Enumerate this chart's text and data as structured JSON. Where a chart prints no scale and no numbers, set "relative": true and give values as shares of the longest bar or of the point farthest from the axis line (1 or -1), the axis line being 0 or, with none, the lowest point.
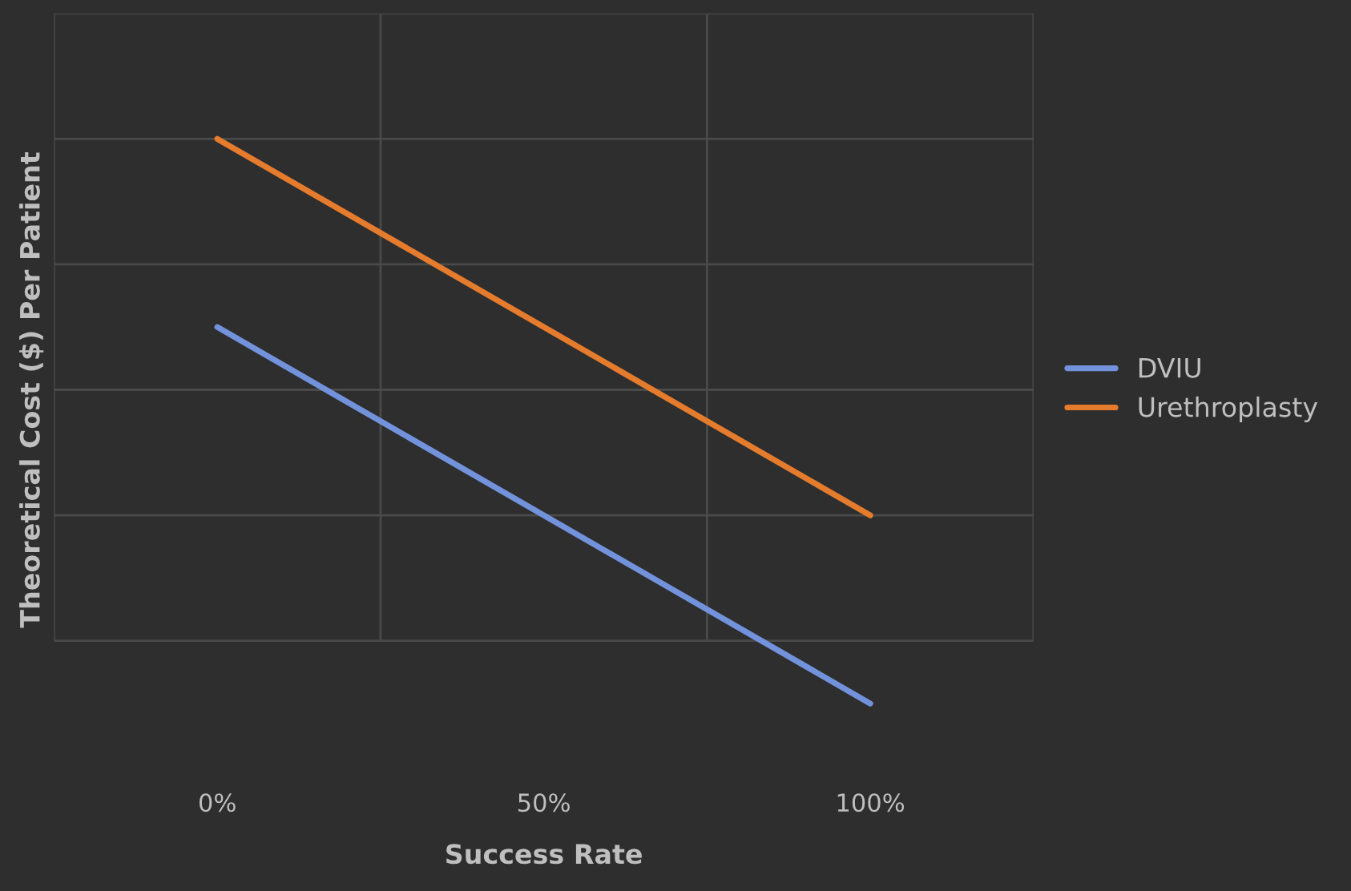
{
  "chart_data": {
    "type": "line",
    "xlabel": "Success Rate",
    "ylabel": "Theoretical Cost ($) Per Patient",
    "categories": [
      "0%",
      "50%",
      "100%"
    ],
    "relative": true,
    "series": [
      {
        "name": "DVIU",
        "color": "#7292dc",
        "values": [
          0.625,
          0.25,
          -0.125
        ]
      },
      {
        "name": "Urethroplasty",
        "color": "#e57b2c",
        "values": [
          1,
          0.625,
          0.25
        ]
      }
    ],
    "grid": true,
    "legend": "right",
    "marker": "none",
    "line_style": "solid"
  }
}
